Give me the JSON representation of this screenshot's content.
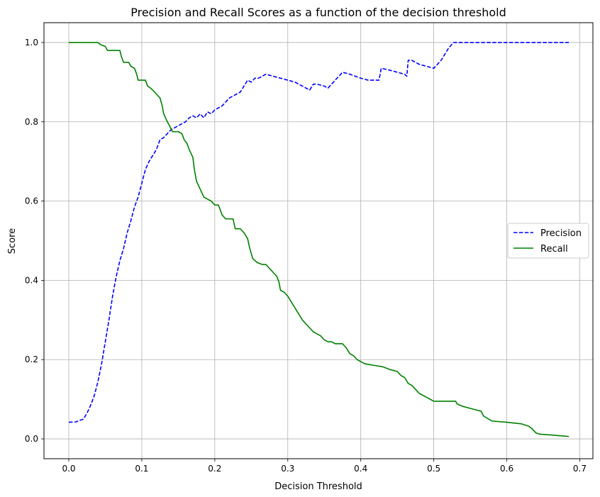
{
  "chart_data": {
    "type": "line",
    "title": "Precision and Recall Scores as a function of the decision threshold",
    "xlabel": "Decision Threshold",
    "ylabel": "Score",
    "xlim": [
      -0.034,
      0.718
    ],
    "ylim": [
      -0.05,
      1.05
    ],
    "xticks": [
      0.0,
      0.1,
      0.2,
      0.3,
      0.4,
      0.5,
      0.6,
      0.7
    ],
    "xtick_labels": [
      "0.0",
      "0.1",
      "0.2",
      "0.3",
      "0.4",
      "0.5",
      "0.6",
      "0.7"
    ],
    "yticks": [
      0.0,
      0.2,
      0.4,
      0.6,
      0.8,
      1.0
    ],
    "ytick_labels": [
      "0.0",
      "0.2",
      "0.4",
      "0.6",
      "0.8",
      "1.0"
    ],
    "grid": true,
    "legend_position": "center-right",
    "series": [
      {
        "name": "Precision",
        "color": "#0000ff",
        "dash": "dashed",
        "points": [
          [
            0.0,
            0.042
          ],
          [
            0.01,
            0.043
          ],
          [
            0.02,
            0.05
          ],
          [
            0.025,
            0.065
          ],
          [
            0.03,
            0.085
          ],
          [
            0.035,
            0.11
          ],
          [
            0.04,
            0.145
          ],
          [
            0.045,
            0.19
          ],
          [
            0.05,
            0.245
          ],
          [
            0.055,
            0.3
          ],
          [
            0.06,
            0.36
          ],
          [
            0.065,
            0.41
          ],
          [
            0.07,
            0.45
          ],
          [
            0.075,
            0.48
          ],
          [
            0.08,
            0.52
          ],
          [
            0.085,
            0.55
          ],
          [
            0.09,
            0.585
          ],
          [
            0.095,
            0.61
          ],
          [
            0.1,
            0.645
          ],
          [
            0.105,
            0.68
          ],
          [
            0.11,
            0.7
          ],
          [
            0.115,
            0.715
          ],
          [
            0.12,
            0.73
          ],
          [
            0.125,
            0.755
          ],
          [
            0.13,
            0.76
          ],
          [
            0.135,
            0.77
          ],
          [
            0.14,
            0.78
          ],
          [
            0.145,
            0.785
          ],
          [
            0.15,
            0.79
          ],
          [
            0.155,
            0.795
          ],
          [
            0.16,
            0.8
          ],
          [
            0.165,
            0.81
          ],
          [
            0.17,
            0.815
          ],
          [
            0.175,
            0.81
          ],
          [
            0.18,
            0.82
          ],
          [
            0.185,
            0.81
          ],
          [
            0.19,
            0.825
          ],
          [
            0.195,
            0.82
          ],
          [
            0.2,
            0.83
          ],
          [
            0.205,
            0.835
          ],
          [
            0.21,
            0.84
          ],
          [
            0.215,
            0.85
          ],
          [
            0.22,
            0.86
          ],
          [
            0.225,
            0.865
          ],
          [
            0.23,
            0.87
          ],
          [
            0.235,
            0.875
          ],
          [
            0.24,
            0.89
          ],
          [
            0.245,
            0.905
          ],
          [
            0.25,
            0.9
          ],
          [
            0.255,
            0.91
          ],
          [
            0.26,
            0.91
          ],
          [
            0.265,
            0.915
          ],
          [
            0.27,
            0.92
          ],
          [
            0.28,
            0.915
          ],
          [
            0.29,
            0.91
          ],
          [
            0.3,
            0.905
          ],
          [
            0.31,
            0.9
          ],
          [
            0.32,
            0.89
          ],
          [
            0.33,
            0.88
          ],
          [
            0.335,
            0.895
          ],
          [
            0.34,
            0.895
          ],
          [
            0.35,
            0.89
          ],
          [
            0.355,
            0.885
          ],
          [
            0.36,
            0.895
          ],
          [
            0.37,
            0.915
          ],
          [
            0.375,
            0.925
          ],
          [
            0.385,
            0.92
          ],
          [
            0.4,
            0.91
          ],
          [
            0.41,
            0.905
          ],
          [
            0.42,
            0.905
          ],
          [
            0.425,
            0.905
          ],
          [
            0.428,
            0.935
          ],
          [
            0.44,
            0.93
          ],
          [
            0.45,
            0.925
          ],
          [
            0.46,
            0.92
          ],
          [
            0.463,
            0.915
          ],
          [
            0.465,
            0.955
          ],
          [
            0.47,
            0.955
          ],
          [
            0.48,
            0.945
          ],
          [
            0.49,
            0.94
          ],
          [
            0.5,
            0.935
          ],
          [
            0.51,
            0.955
          ],
          [
            0.52,
            0.985
          ],
          [
            0.527,
            1.0
          ],
          [
            0.6,
            1.0
          ],
          [
            0.685,
            1.0
          ]
        ]
      },
      {
        "name": "Recall",
        "color": "#008000",
        "dash": "solid",
        "points": [
          [
            0.0,
            1.0
          ],
          [
            0.04,
            1.0
          ],
          [
            0.043,
            0.995
          ],
          [
            0.05,
            0.99
          ],
          [
            0.053,
            0.98
          ],
          [
            0.07,
            0.98
          ],
          [
            0.072,
            0.965
          ],
          [
            0.075,
            0.95
          ],
          [
            0.082,
            0.95
          ],
          [
            0.085,
            0.94
          ],
          [
            0.09,
            0.935
          ],
          [
            0.093,
            0.92
          ],
          [
            0.095,
            0.905
          ],
          [
            0.105,
            0.905
          ],
          [
            0.108,
            0.89
          ],
          [
            0.112,
            0.885
          ],
          [
            0.115,
            0.88
          ],
          [
            0.12,
            0.87
          ],
          [
            0.125,
            0.86
          ],
          [
            0.128,
            0.84
          ],
          [
            0.13,
            0.82
          ],
          [
            0.135,
            0.8
          ],
          [
            0.138,
            0.79
          ],
          [
            0.142,
            0.775
          ],
          [
            0.15,
            0.775
          ],
          [
            0.155,
            0.77
          ],
          [
            0.158,
            0.755
          ],
          [
            0.162,
            0.745
          ],
          [
            0.165,
            0.73
          ],
          [
            0.17,
            0.71
          ],
          [
            0.172,
            0.68
          ],
          [
            0.175,
            0.65
          ],
          [
            0.18,
            0.63
          ],
          [
            0.185,
            0.61
          ],
          [
            0.19,
            0.605
          ],
          [
            0.195,
            0.6
          ],
          [
            0.2,
            0.59
          ],
          [
            0.205,
            0.59
          ],
          [
            0.208,
            0.575
          ],
          [
            0.21,
            0.565
          ],
          [
            0.215,
            0.555
          ],
          [
            0.225,
            0.555
          ],
          [
            0.228,
            0.53
          ],
          [
            0.235,
            0.53
          ],
          [
            0.24,
            0.52
          ],
          [
            0.245,
            0.505
          ],
          [
            0.248,
            0.48
          ],
          [
            0.252,
            0.455
          ],
          [
            0.258,
            0.445
          ],
          [
            0.265,
            0.44
          ],
          [
            0.27,
            0.44
          ],
          [
            0.275,
            0.43
          ],
          [
            0.28,
            0.42
          ],
          [
            0.285,
            0.41
          ],
          [
            0.288,
            0.395
          ],
          [
            0.29,
            0.375
          ],
          [
            0.295,
            0.37
          ],
          [
            0.3,
            0.36
          ],
          [
            0.305,
            0.345
          ],
          [
            0.31,
            0.33
          ],
          [
            0.315,
            0.315
          ],
          [
            0.32,
            0.3
          ],
          [
            0.325,
            0.29
          ],
          [
            0.33,
            0.28
          ],
          [
            0.335,
            0.27
          ],
          [
            0.34,
            0.265
          ],
          [
            0.345,
            0.26
          ],
          [
            0.35,
            0.25
          ],
          [
            0.355,
            0.245
          ],
          [
            0.36,
            0.245
          ],
          [
            0.365,
            0.24
          ],
          [
            0.375,
            0.24
          ],
          [
            0.38,
            0.23
          ],
          [
            0.385,
            0.215
          ],
          [
            0.39,
            0.21
          ],
          [
            0.395,
            0.2
          ],
          [
            0.4,
            0.195
          ],
          [
            0.405,
            0.19
          ],
          [
            0.41,
            0.188
          ],
          [
            0.42,
            0.185
          ],
          [
            0.43,
            0.182
          ],
          [
            0.44,
            0.175
          ],
          [
            0.45,
            0.17
          ],
          [
            0.455,
            0.16
          ],
          [
            0.46,
            0.155
          ],
          [
            0.465,
            0.14
          ],
          [
            0.47,
            0.135
          ],
          [
            0.475,
            0.125
          ],
          [
            0.48,
            0.115
          ],
          [
            0.49,
            0.105
          ],
          [
            0.495,
            0.1
          ],
          [
            0.5,
            0.095
          ],
          [
            0.52,
            0.095
          ],
          [
            0.53,
            0.095
          ],
          [
            0.532,
            0.088
          ],
          [
            0.54,
            0.082
          ],
          [
            0.55,
            0.077
          ],
          [
            0.56,
            0.072
          ],
          [
            0.565,
            0.07
          ],
          [
            0.568,
            0.058
          ],
          [
            0.575,
            0.05
          ],
          [
            0.58,
            0.045
          ],
          [
            0.6,
            0.042
          ],
          [
            0.62,
            0.038
          ],
          [
            0.63,
            0.032
          ],
          [
            0.635,
            0.025
          ],
          [
            0.64,
            0.015
          ],
          [
            0.645,
            0.012
          ],
          [
            0.66,
            0.01
          ],
          [
            0.685,
            0.006
          ]
        ]
      }
    ]
  }
}
